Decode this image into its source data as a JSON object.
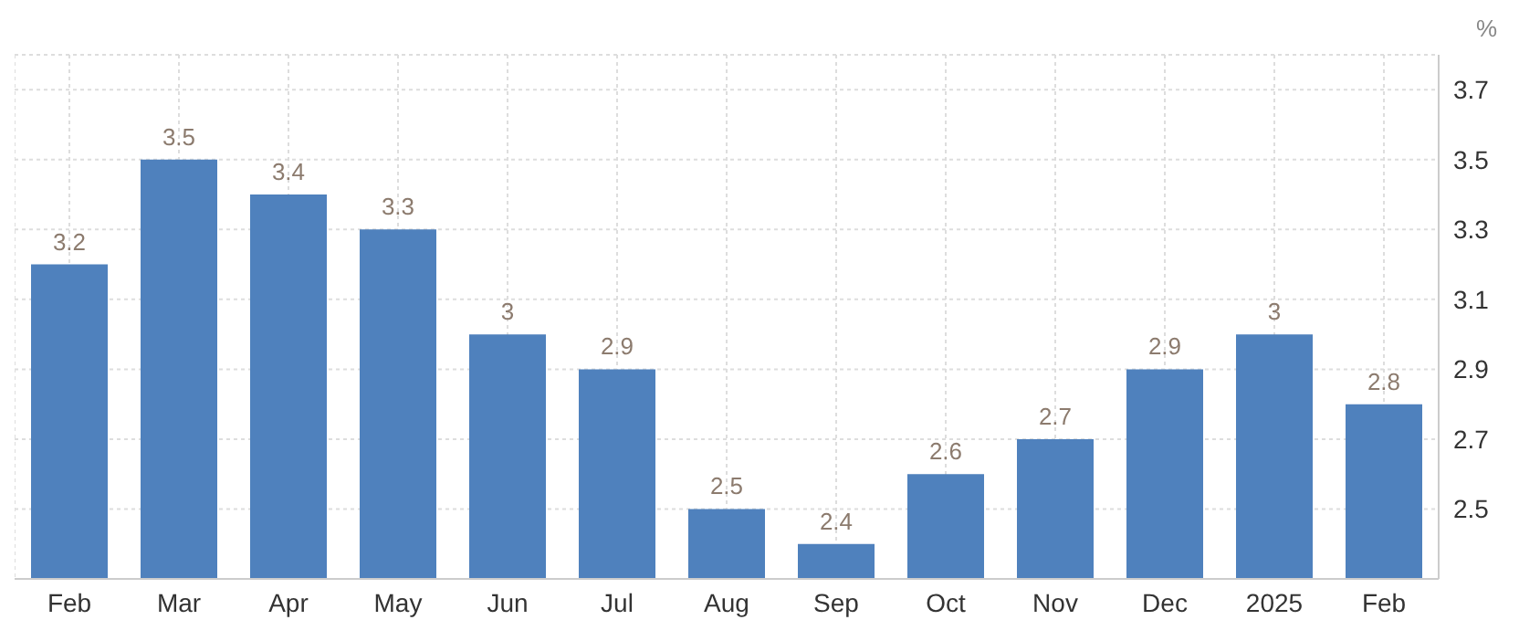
{
  "chart_data": {
    "type": "bar",
    "ylabel": "%",
    "categories": [
      "Feb",
      "Mar",
      "Apr",
      "May",
      "Jun",
      "Jul",
      "Aug",
      "Sep",
      "Oct",
      "Nov",
      "Dec",
      "2025",
      "Feb"
    ],
    "values": [
      3.2,
      3.5,
      3.4,
      3.3,
      3,
      2.9,
      2.5,
      2.4,
      2.6,
      2.7,
      2.9,
      3,
      2.8
    ],
    "color": "#4f81bd",
    "ylim": [
      2.3,
      3.8
    ],
    "yticks": [
      2.5,
      2.7,
      2.9,
      3.1,
      3.3,
      3.5,
      3.7
    ],
    "grid": true,
    "data_labels": true
  }
}
